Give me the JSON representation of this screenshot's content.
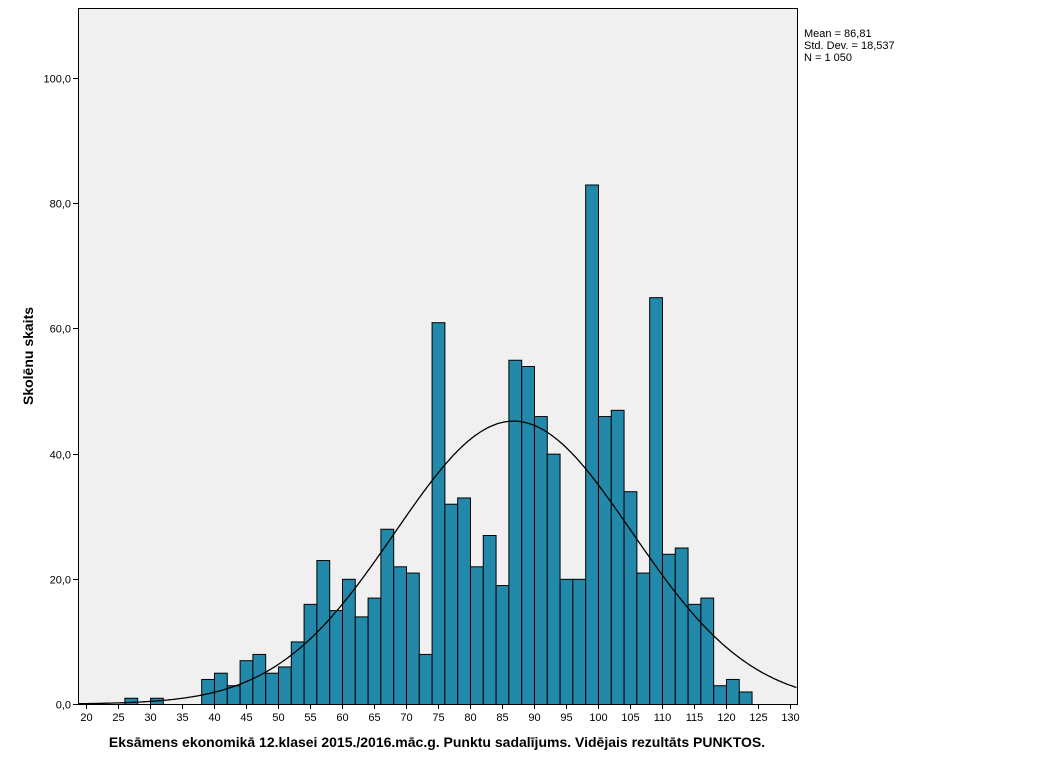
{
  "chart_data": {
    "type": "bar",
    "subtype": "histogram",
    "xlabel": "Eksāmens ekonomikā 12.klasei 2015./2016.māc.g. Punktu sadalījums. Vidējais rezultāts PUNKTOS.",
    "ylabel": "Skolēnu skaits",
    "bin_width": 2,
    "bin_starts": [
      26,
      28,
      30,
      32,
      34,
      36,
      38,
      40,
      42,
      44,
      46,
      48,
      50,
      52,
      54,
      56,
      58,
      60,
      62,
      64,
      66,
      68,
      70,
      72,
      74,
      76,
      78,
      80,
      82,
      84,
      86,
      88,
      90,
      92,
      94,
      96,
      98,
      100,
      102,
      104,
      106,
      108,
      110,
      112,
      114,
      116,
      118,
      120,
      122
    ],
    "values": [
      1,
      0,
      1,
      0,
      0,
      0,
      4,
      5,
      3,
      7,
      8,
      5,
      6,
      10,
      16,
      23,
      15,
      20,
      14,
      17,
      28,
      22,
      21,
      8,
      61,
      32,
      33,
      22,
      27,
      19,
      55,
      54,
      46,
      40,
      20,
      20,
      83,
      46,
      47,
      34,
      21,
      65,
      24,
      25,
      16,
      17,
      3,
      4,
      2
    ],
    "xlim": [
      18.75,
      131.1
    ],
    "ylim": [
      0,
      111.2
    ],
    "x_ticks": [
      20,
      25,
      30,
      35,
      40,
      45,
      50,
      55,
      60,
      65,
      70,
      75,
      80,
      85,
      90,
      95,
      100,
      105,
      110,
      115,
      120,
      125,
      130
    ],
    "x_tick_labels": [
      "20",
      "25",
      "30",
      "35",
      "40",
      "45",
      "50",
      "55",
      "60",
      "65",
      "70",
      "75",
      "80",
      "85",
      "90",
      "95",
      "100",
      "105",
      "110",
      "115",
      "120",
      "125",
      "130"
    ],
    "y_ticks": [
      0,
      20,
      40,
      60,
      80,
      100
    ],
    "y_tick_labels": [
      "0,0",
      "20,0",
      "40,0",
      "60,0",
      "80,0",
      "100,0"
    ],
    "normal_curve": {
      "mean": 86.81,
      "std": 18.537,
      "n": 1050
    },
    "legend": {
      "placement": "top-right outside",
      "lines": [
        "Mean = 86,81",
        "Std. Dev. = 18,537",
        "N = 1 050"
      ]
    },
    "grid": false,
    "colors": {
      "bar": "#2389AB",
      "background": "#F0F0F0",
      "curve": "#000000"
    }
  }
}
